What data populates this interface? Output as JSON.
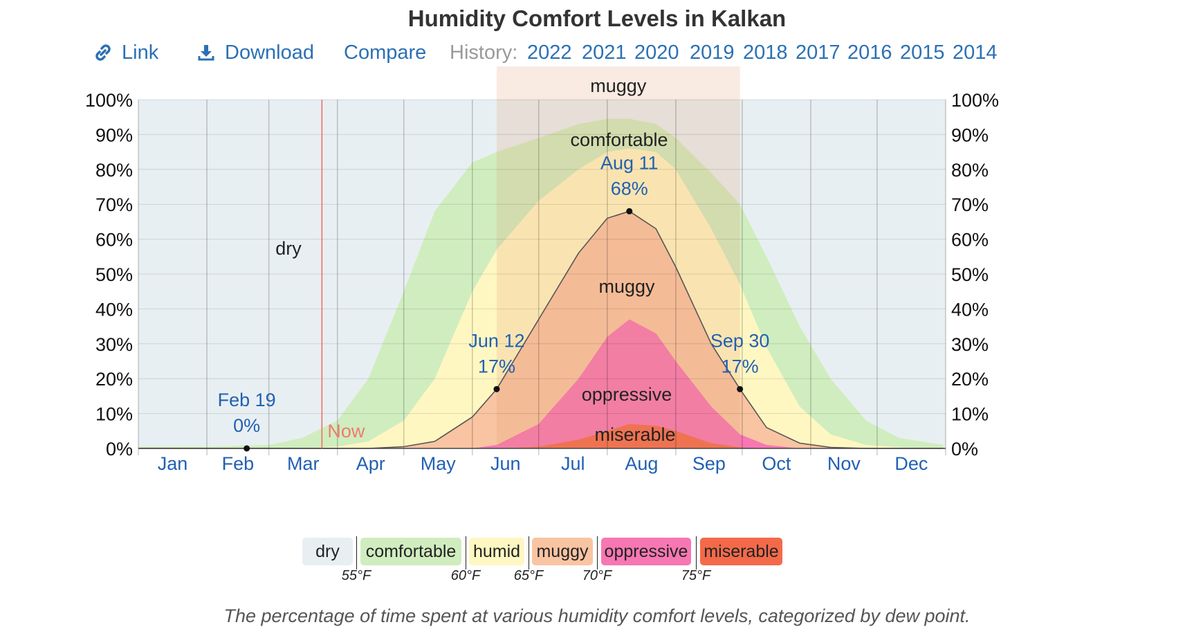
{
  "title": "Humidity Comfort Levels in Kalkan",
  "toolbar": {
    "link_label": "Link",
    "download_label": "Download",
    "compare_label": "Compare",
    "history_label": "History:",
    "years": [
      "2022",
      "2021",
      "2020",
      "2019",
      "2018",
      "2017",
      "2016",
      "2015",
      "2014"
    ]
  },
  "caption": "The percentage of time spent at various humidity comfort levels, categorized by dew point.",
  "legend": {
    "categories": [
      "dry",
      "comfortable",
      "humid",
      "muggy",
      "oppressive",
      "miserable"
    ],
    "colors": [
      "#e8eff2",
      "#d0edbf",
      "#fff7c2",
      "#f9c4a2",
      "#f777b2",
      "#f36a4a"
    ],
    "thresholds": [
      "55°F",
      "60°F",
      "65°F",
      "70°F",
      "75°F"
    ]
  },
  "chart_data": {
    "type": "area",
    "title": "Humidity Comfort Levels in Kalkan",
    "x_unit": "day of year",
    "month_labels": [
      "Jan",
      "Feb",
      "Mar",
      "Apr",
      "May",
      "Jun",
      "Jul",
      "Aug",
      "Sep",
      "Oct",
      "Nov",
      "Dec"
    ],
    "ylim": [
      0,
      100
    ],
    "y_ticks": [
      "0%",
      "10%",
      "20%",
      "30%",
      "40%",
      "50%",
      "60%",
      "70%",
      "80%",
      "90%",
      "100%"
    ],
    "grid": true,
    "x": [
      1,
      32,
      60,
      75,
      91,
      105,
      121,
      135,
      152,
      163,
      182,
      200,
      213,
      223,
      235,
      244,
      260,
      273,
      285,
      300,
      314,
      330,
      345,
      365
    ],
    "series": [
      {
        "name": "miserable",
        "values": [
          0,
          0,
          0,
          0,
          0,
          0,
          0,
          0,
          0,
          0,
          0.5,
          2.5,
          5,
          7,
          6.5,
          5,
          1.5,
          0.3,
          0,
          0,
          0,
          0,
          0,
          0
        ]
      },
      {
        "name": "oppressive",
        "values": [
          0,
          0,
          0,
          0,
          0,
          0,
          0,
          0,
          0,
          1,
          7,
          20,
          32,
          37,
          33,
          25,
          12,
          4,
          1,
          0,
          0,
          0,
          0,
          0
        ]
      },
      {
        "name": "muggy",
        "values": [
          0,
          0,
          0,
          0,
          0,
          0,
          0.5,
          2,
          9,
          17,
          37,
          56,
          66,
          68,
          63,
          52,
          30,
          17,
          6,
          1.5,
          0.3,
          0,
          0,
          0
        ]
      },
      {
        "name": "humid",
        "values": [
          0,
          0,
          0,
          0,
          0.5,
          2,
          8,
          20,
          45,
          57,
          71,
          80,
          85,
          86,
          85,
          80,
          63,
          47,
          29,
          12,
          4,
          1,
          0.3,
          0
        ]
      },
      {
        "name": "comfortable",
        "values": [
          0.5,
          0.5,
          1,
          3,
          8,
          20,
          45,
          68,
          82,
          85,
          89,
          93,
          94.5,
          94.5,
          93,
          89,
          79,
          70,
          55,
          35,
          20,
          8,
          3,
          1
        ]
      }
    ],
    "band_labels": [
      "dry",
      "comfortable",
      "muggy",
      "oppressive",
      "miserable"
    ],
    "summer_band": {
      "label": "muggy",
      "start_day": 163,
      "end_day": 273
    },
    "now_marker": {
      "label": "Now",
      "day": 84
    },
    "annotations": [
      {
        "date": "Feb 19",
        "value": "0%",
        "day": 50,
        "y": 0
      },
      {
        "date": "Jun 12",
        "value": "17%",
        "day": 163,
        "y": 17
      },
      {
        "date": "Aug 11",
        "value": "68%",
        "day": 223,
        "y": 68
      },
      {
        "date": "Sep 30",
        "value": "17%",
        "day": 273,
        "y": 17
      }
    ]
  }
}
